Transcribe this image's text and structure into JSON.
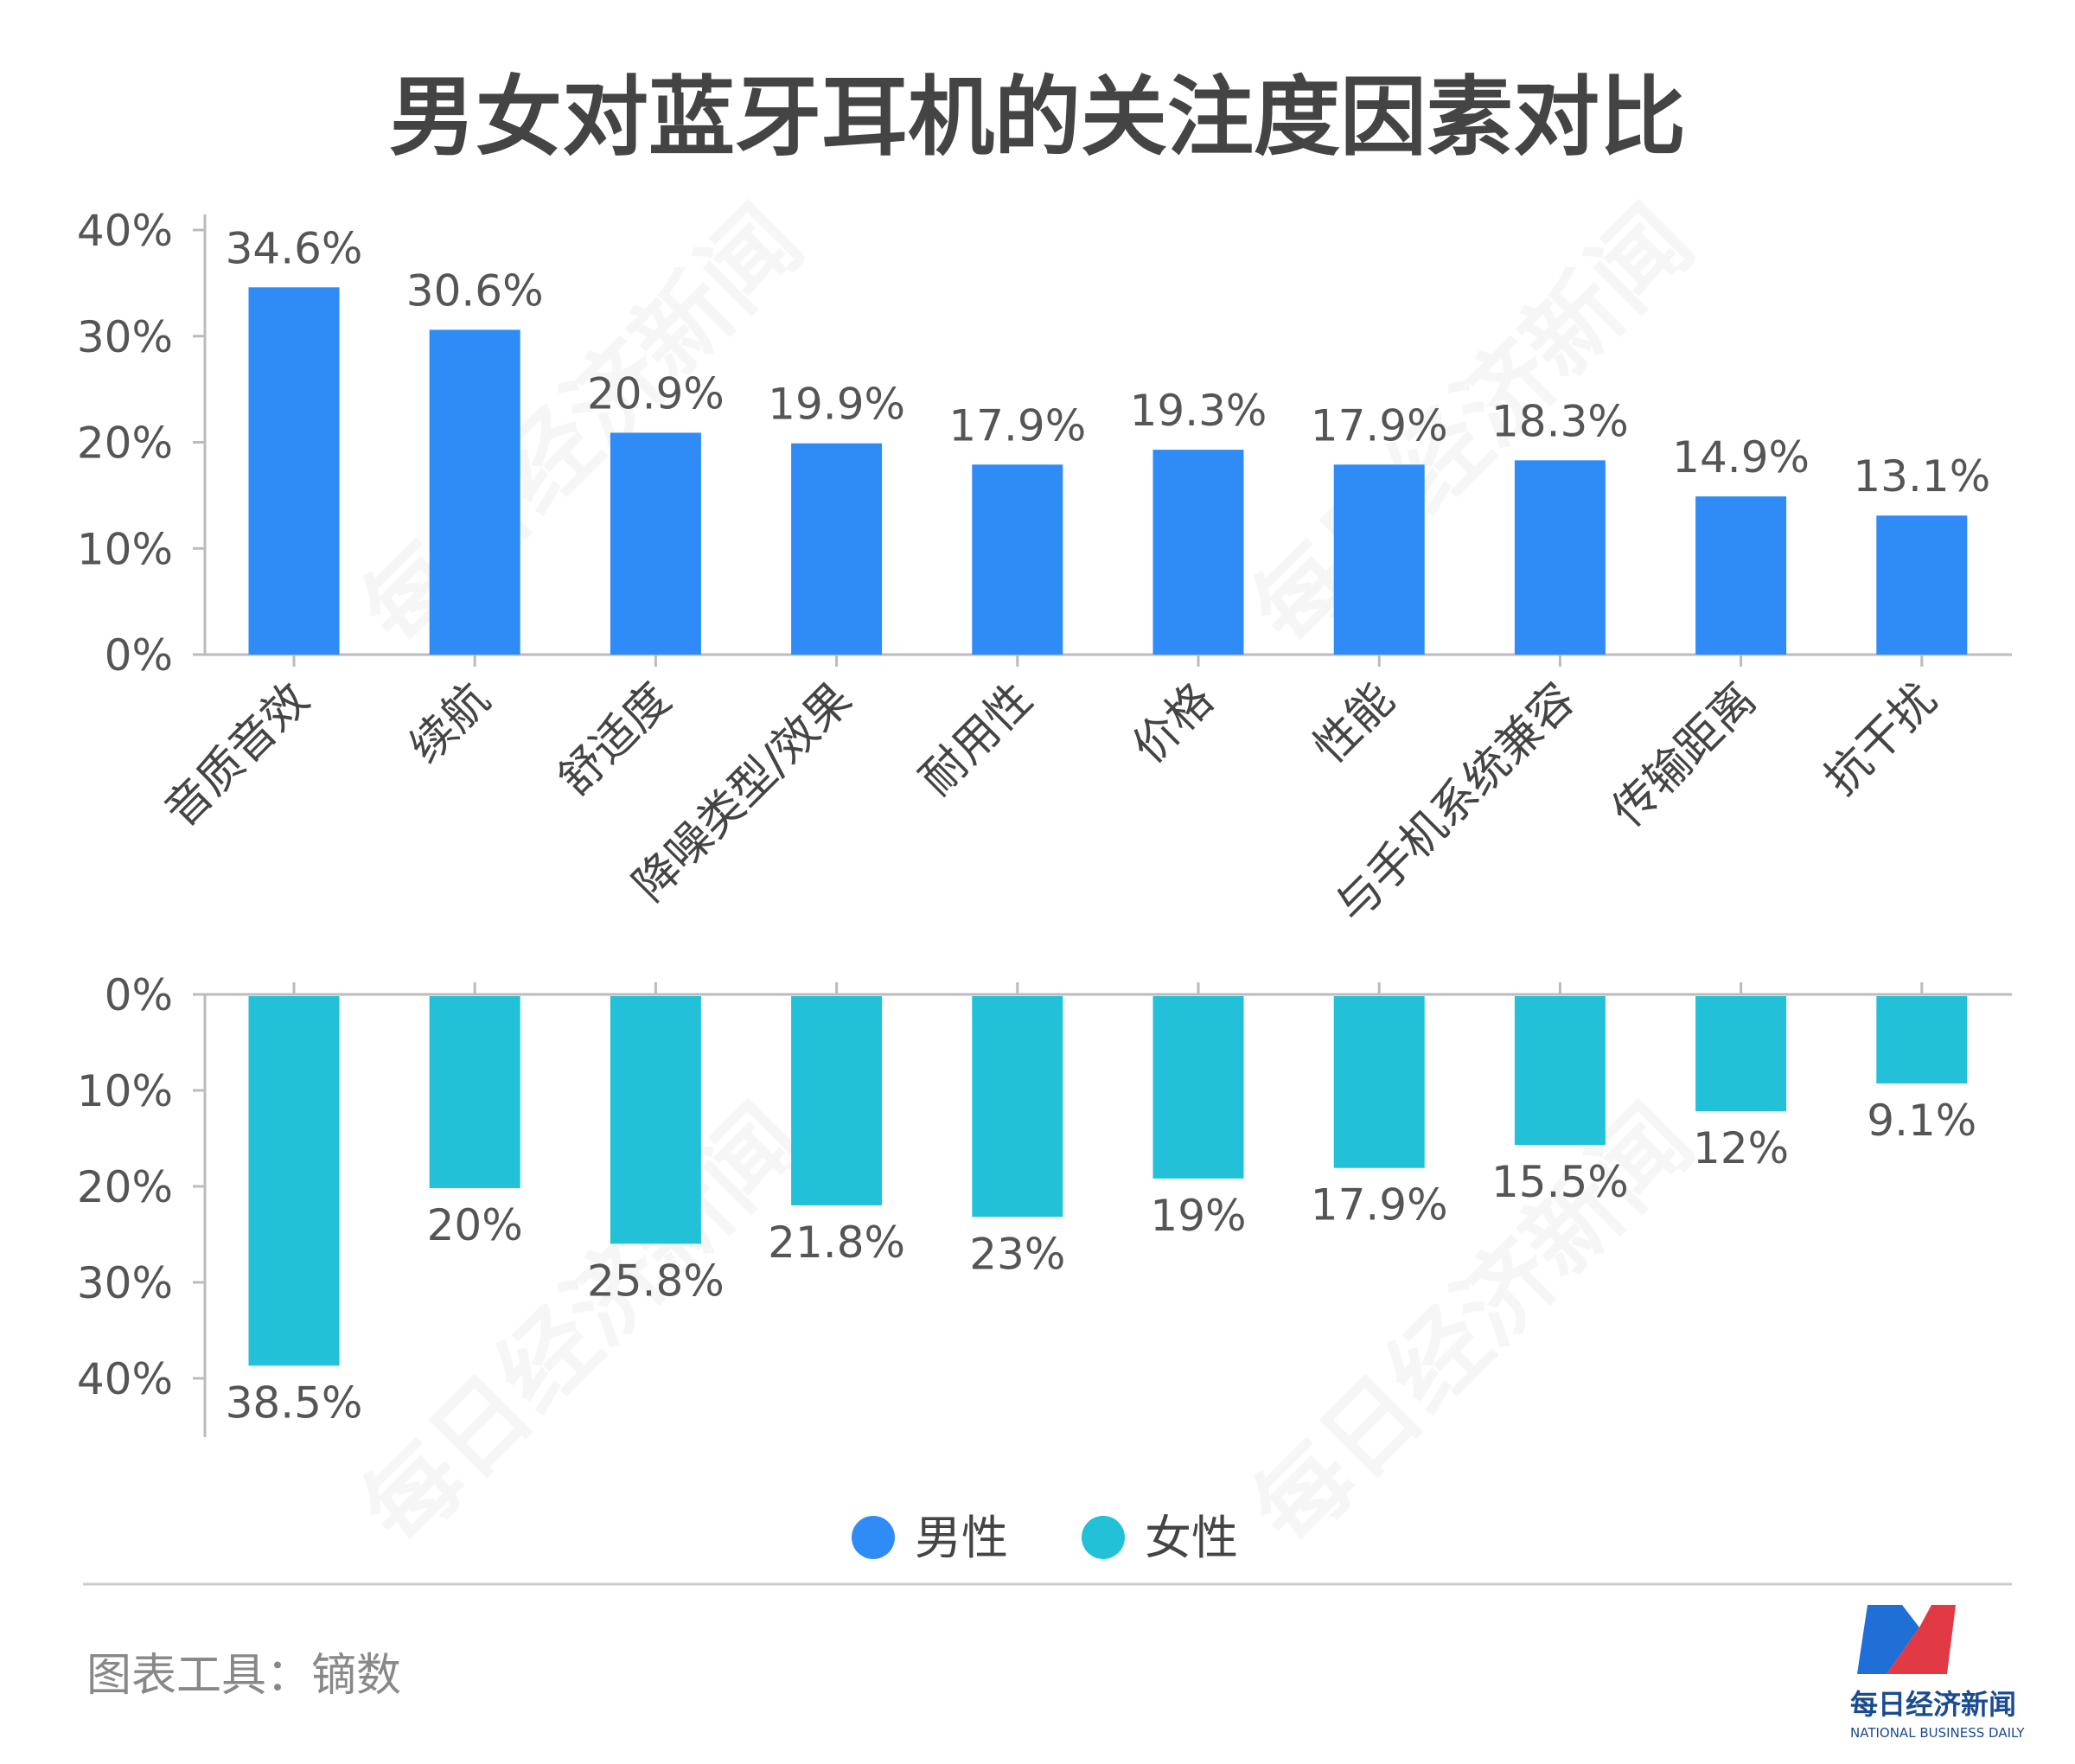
{
  "chart_data": {
    "type": "bar",
    "title": "男女对蓝牙耳机的关注度因素对比",
    "categories": [
      "音质音效",
      "续航",
      "舒适度",
      "降噪类型/效果",
      "耐用性",
      "价格",
      "性能",
      "与手机系统兼容",
      "传输距离",
      "抗干扰"
    ],
    "series": [
      {
        "name": "男性",
        "color": "#2f8cf7",
        "values": [
          34.6,
          30.6,
          20.9,
          19.9,
          17.9,
          19.3,
          17.9,
          18.3,
          14.9,
          13.1
        ],
        "labels": [
          "34.6%",
          "30.6%",
          "20.9%",
          "19.9%",
          "17.9%",
          "19.3%",
          "17.9%",
          "18.3%",
          "14.9%",
          "13.1%"
        ]
      },
      {
        "name": "女性",
        "color": "#22c1d8",
        "values": [
          38.5,
          20,
          25.8,
          21.8,
          23,
          19,
          17.9,
          15.5,
          12,
          9.1
        ],
        "labels": [
          "38.5%",
          "20%",
          "25.8%",
          "21.8%",
          "23%",
          "19%",
          "17.9%",
          "15.5%",
          "12%",
          "9.1%"
        ]
      }
    ],
    "yticks": [
      "0%",
      "10%",
      "20%",
      "30%",
      "40%"
    ],
    "ylim": [
      0,
      40
    ],
    "legend_position": "bottom-center",
    "grid": false
  },
  "footer": {
    "source": "图表工具：镝数"
  },
  "logo": {
    "name_cn": "每日经济新闻",
    "name_en": "NATIONAL BUSINESS DAILY"
  },
  "watermark": "每日经济新闻"
}
